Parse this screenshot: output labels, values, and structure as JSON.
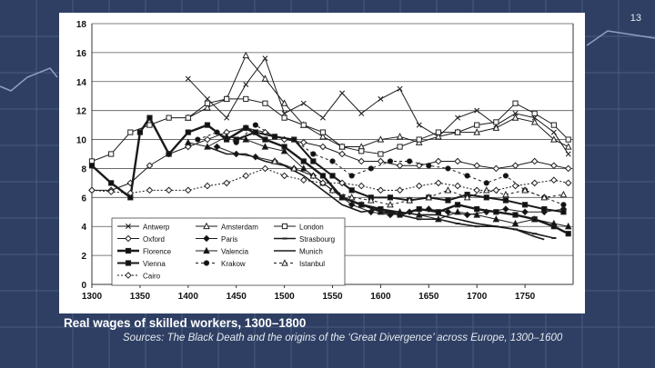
{
  "slide": {
    "number": "13"
  },
  "caption": {
    "title": "Real wages of skilled workers, 1300–1800",
    "source": "Sources: The Black Death and the origins of the ‘Great Divergence’ across Europe, 1300–1600"
  },
  "chart_data": {
    "type": "line",
    "title": "",
    "xlabel": "",
    "ylabel": "",
    "xlim": [
      1300,
      1800
    ],
    "ylim": [
      0,
      18
    ],
    "xticks": [
      1300,
      1350,
      1400,
      1450,
      1500,
      1550,
      1600,
      1650,
      1700,
      1750
    ],
    "yticks": [
      0,
      2,
      4,
      6,
      8,
      10,
      12,
      14,
      16,
      18
    ],
    "grid": "horizontal",
    "legend_position": "bottom-left",
    "series": [
      {
        "name": "Antwerp",
        "dash": "",
        "marker": "x",
        "x": [
          1400,
          1420,
          1440,
          1460,
          1480,
          1500,
          1520,
          1540,
          1560,
          1580,
          1600,
          1620,
          1640,
          1660,
          1680,
          1700,
          1720,
          1740,
          1760,
          1780,
          1795
        ],
        "y": [
          14.2,
          12.8,
          11.5,
          13.8,
          15.6,
          11.8,
          12.5,
          11.5,
          13.2,
          11.8,
          12.8,
          13.5,
          11.0,
          10.2,
          11.5,
          12.0,
          11.0,
          11.8,
          11.5,
          10.5,
          9.0
        ]
      },
      {
        "name": "Amsterdam",
        "dash": "",
        "marker": "triangle-open",
        "x": [
          1400,
          1420,
          1440,
          1460,
          1480,
          1500,
          1520,
          1540,
          1560,
          1580,
          1600,
          1620,
          1640,
          1660,
          1680,
          1700,
          1720,
          1740,
          1760,
          1780,
          1795
        ],
        "y": [
          11.5,
          12.2,
          12.8,
          15.8,
          14.2,
          12.5,
          11.0,
          10.2,
          9.5,
          9.5,
          10.0,
          10.2,
          9.8,
          10.2,
          10.5,
          10.5,
          10.8,
          11.5,
          11.2,
          10.0,
          9.5
        ]
      },
      {
        "name": "London",
        "dash": "",
        "marker": "square-open",
        "x": [
          1300,
          1320,
          1340,
          1360,
          1380,
          1400,
          1420,
          1440,
          1460,
          1480,
          1500,
          1520,
          1540,
          1560,
          1580,
          1600,
          1620,
          1640,
          1660,
          1680,
          1700,
          1720,
          1740,
          1760,
          1780,
          1795
        ],
        "y": [
          8.5,
          9.0,
          10.5,
          11.0,
          11.5,
          11.5,
          12.5,
          12.8,
          12.8,
          12.5,
          11.5,
          11.0,
          10.5,
          9.5,
          9.2,
          9.0,
          9.5,
          10.0,
          10.5,
          10.5,
          11.0,
          11.2,
          12.5,
          11.8,
          11.0,
          10.0
        ]
      },
      {
        "name": "Oxford",
        "dash": "",
        "marker": "diamond-open",
        "x": [
          1300,
          1320,
          1340,
          1360,
          1380,
          1400,
          1420,
          1440,
          1460,
          1480,
          1500,
          1520,
          1540,
          1560,
          1580,
          1600,
          1620,
          1640,
          1660,
          1680,
          1700,
          1720,
          1740,
          1760,
          1780,
          1795
        ],
        "y": [
          6.5,
          6.5,
          7.0,
          8.2,
          9.0,
          9.5,
          10.0,
          10.5,
          10.8,
          10.5,
          10.0,
          9.8,
          9.5,
          9.0,
          8.5,
          8.5,
          8.2,
          8.2,
          8.5,
          8.5,
          8.2,
          8.0,
          8.2,
          8.5,
          8.2,
          8.0
        ]
      },
      {
        "name": "Paris",
        "dash": "",
        "marker": "diamond-filled",
        "x": [
          1430,
          1450,
          1470,
          1490,
          1510,
          1530,
          1550,
          1570,
          1590,
          1610,
          1630,
          1650,
          1670,
          1690,
          1710,
          1730,
          1750,
          1770,
          1790
        ],
        "y": [
          9.5,
          9.0,
          8.8,
          8.5,
          8.0,
          7.5,
          6.5,
          5.5,
          5.0,
          4.8,
          5.0,
          5.2,
          5.0,
          4.8,
          5.0,
          5.2,
          5.0,
          5.0,
          5.2
        ]
      },
      {
        "name": "Strasbourg",
        "dash": "",
        "marker": "dash",
        "x": [
          1560,
          1580,
          1600,
          1620,
          1640,
          1660,
          1680,
          1700,
          1720,
          1740,
          1760,
          1780
        ],
        "y": [
          6.0,
          5.5,
          5.0,
          4.8,
          4.5,
          4.5,
          4.2,
          4.0,
          4.0,
          3.8,
          3.5,
          3.2
        ]
      },
      {
        "name": "Florence",
        "dash": "",
        "marker": "square-filled",
        "x": [
          1300,
          1320,
          1340,
          1350,
          1360,
          1380,
          1400,
          1420,
          1440,
          1460,
          1480,
          1500,
          1520,
          1540,
          1560,
          1580,
          1600,
          1620,
          1640,
          1660,
          1680,
          1700,
          1720,
          1740,
          1760,
          1780,
          1795
        ],
        "y": [
          8.2,
          7.0,
          6.0,
          10.5,
          11.5,
          9.0,
          10.5,
          11.0,
          10.0,
          10.8,
          10.0,
          9.5,
          8.5,
          7.5,
          6.0,
          5.5,
          5.2,
          4.8,
          5.2,
          5.0,
          5.5,
          5.2,
          5.0,
          4.8,
          4.5,
          4.0,
          3.5
        ]
      },
      {
        "name": "Valencia",
        "dash": "",
        "marker": "triangle-filled",
        "x": [
          1400,
          1420,
          1440,
          1460,
          1480,
          1500,
          1520,
          1540,
          1560,
          1580,
          1600,
          1620,
          1640,
          1660,
          1680,
          1700,
          1720,
          1740,
          1760,
          1780,
          1795
        ],
        "y": [
          9.8,
          9.5,
          10.2,
          10.0,
          9.5,
          9.2,
          8.0,
          7.0,
          6.0,
          5.5,
          5.0,
          5.0,
          4.8,
          4.5,
          5.0,
          4.8,
          4.5,
          4.2,
          4.5,
          4.2,
          4.0
        ]
      },
      {
        "name": "Munich",
        "dash": "",
        "marker": "",
        "x": [
          1420,
          1440,
          1460,
          1480,
          1500,
          1520,
          1540,
          1560,
          1580,
          1600,
          1620,
          1640,
          1660,
          1680,
          1700,
          1720,
          1740,
          1760,
          1770
        ],
        "y": [
          9.5,
          9.0,
          9.0,
          8.5,
          8.2,
          7.5,
          6.5,
          5.5,
          5.0,
          5.2,
          5.0,
          4.8,
          4.8,
          4.5,
          4.2,
          4.0,
          3.8,
          3.3,
          3.1
        ]
      },
      {
        "name": "Vienna",
        "dash": "",
        "marker": "square-filled",
        "x": [
          1450,
          1470,
          1490,
          1510,
          1530,
          1550,
          1570,
          1590,
          1610,
          1630,
          1650,
          1670,
          1690,
          1710,
          1730,
          1750,
          1770,
          1790
        ],
        "y": [
          10.0,
          10.5,
          10.2,
          10.0,
          8.5,
          7.5,
          6.5,
          6.0,
          6.0,
          5.8,
          6.0,
          5.8,
          6.2,
          6.0,
          5.8,
          5.5,
          5.2,
          5.0
        ]
      },
      {
        "name": "Krakow",
        "dash": "3,3",
        "marker": "circle-filled",
        "x": [
          1410,
          1430,
          1450,
          1470,
          1490,
          1510,
          1530,
          1550,
          1570,
          1590,
          1610,
          1630,
          1650,
          1670,
          1690,
          1710,
          1730,
          1750,
          1770,
          1790
        ],
        "y": [
          10.0,
          10.5,
          9.8,
          11.0,
          10.2,
          10.0,
          9.0,
          8.5,
          7.5,
          8.0,
          8.5,
          8.5,
          8.2,
          8.0,
          7.5,
          7.0,
          7.5,
          6.5,
          6.0,
          5.5
        ]
      },
      {
        "name": "Istanbul",
        "dash": "3,3",
        "marker": "triangle-open",
        "x": [
          1490,
          1510,
          1530,
          1550,
          1570,
          1590,
          1610,
          1630,
          1650,
          1670,
          1690,
          1710,
          1730,
          1750,
          1770,
          1790
        ],
        "y": [
          8.5,
          8.0,
          7.5,
          6.5,
          6.0,
          5.8,
          5.5,
          5.8,
          6.0,
          6.5,
          6.0,
          6.5,
          6.2,
          6.5,
          6.0,
          6.2
        ]
      },
      {
        "name": "Cairo",
        "dash": "2,2",
        "marker": "diamond-open",
        "x": [
          1300,
          1320,
          1340,
          1360,
          1380,
          1400,
          1420,
          1440,
          1460,
          1480,
          1500,
          1520,
          1540,
          1560,
          1580,
          1600,
          1620,
          1640,
          1660,
          1680,
          1700,
          1720,
          1740,
          1760,
          1780,
          1795
        ],
        "y": [
          6.5,
          6.4,
          6.3,
          6.5,
          6.5,
          6.5,
          6.8,
          7.0,
          7.5,
          8.0,
          7.5,
          7.2,
          7.0,
          7.0,
          6.8,
          6.5,
          6.5,
          6.8,
          7.0,
          6.8,
          6.5,
          6.5,
          6.8,
          7.0,
          7.2,
          7.0
        ]
      }
    ]
  }
}
